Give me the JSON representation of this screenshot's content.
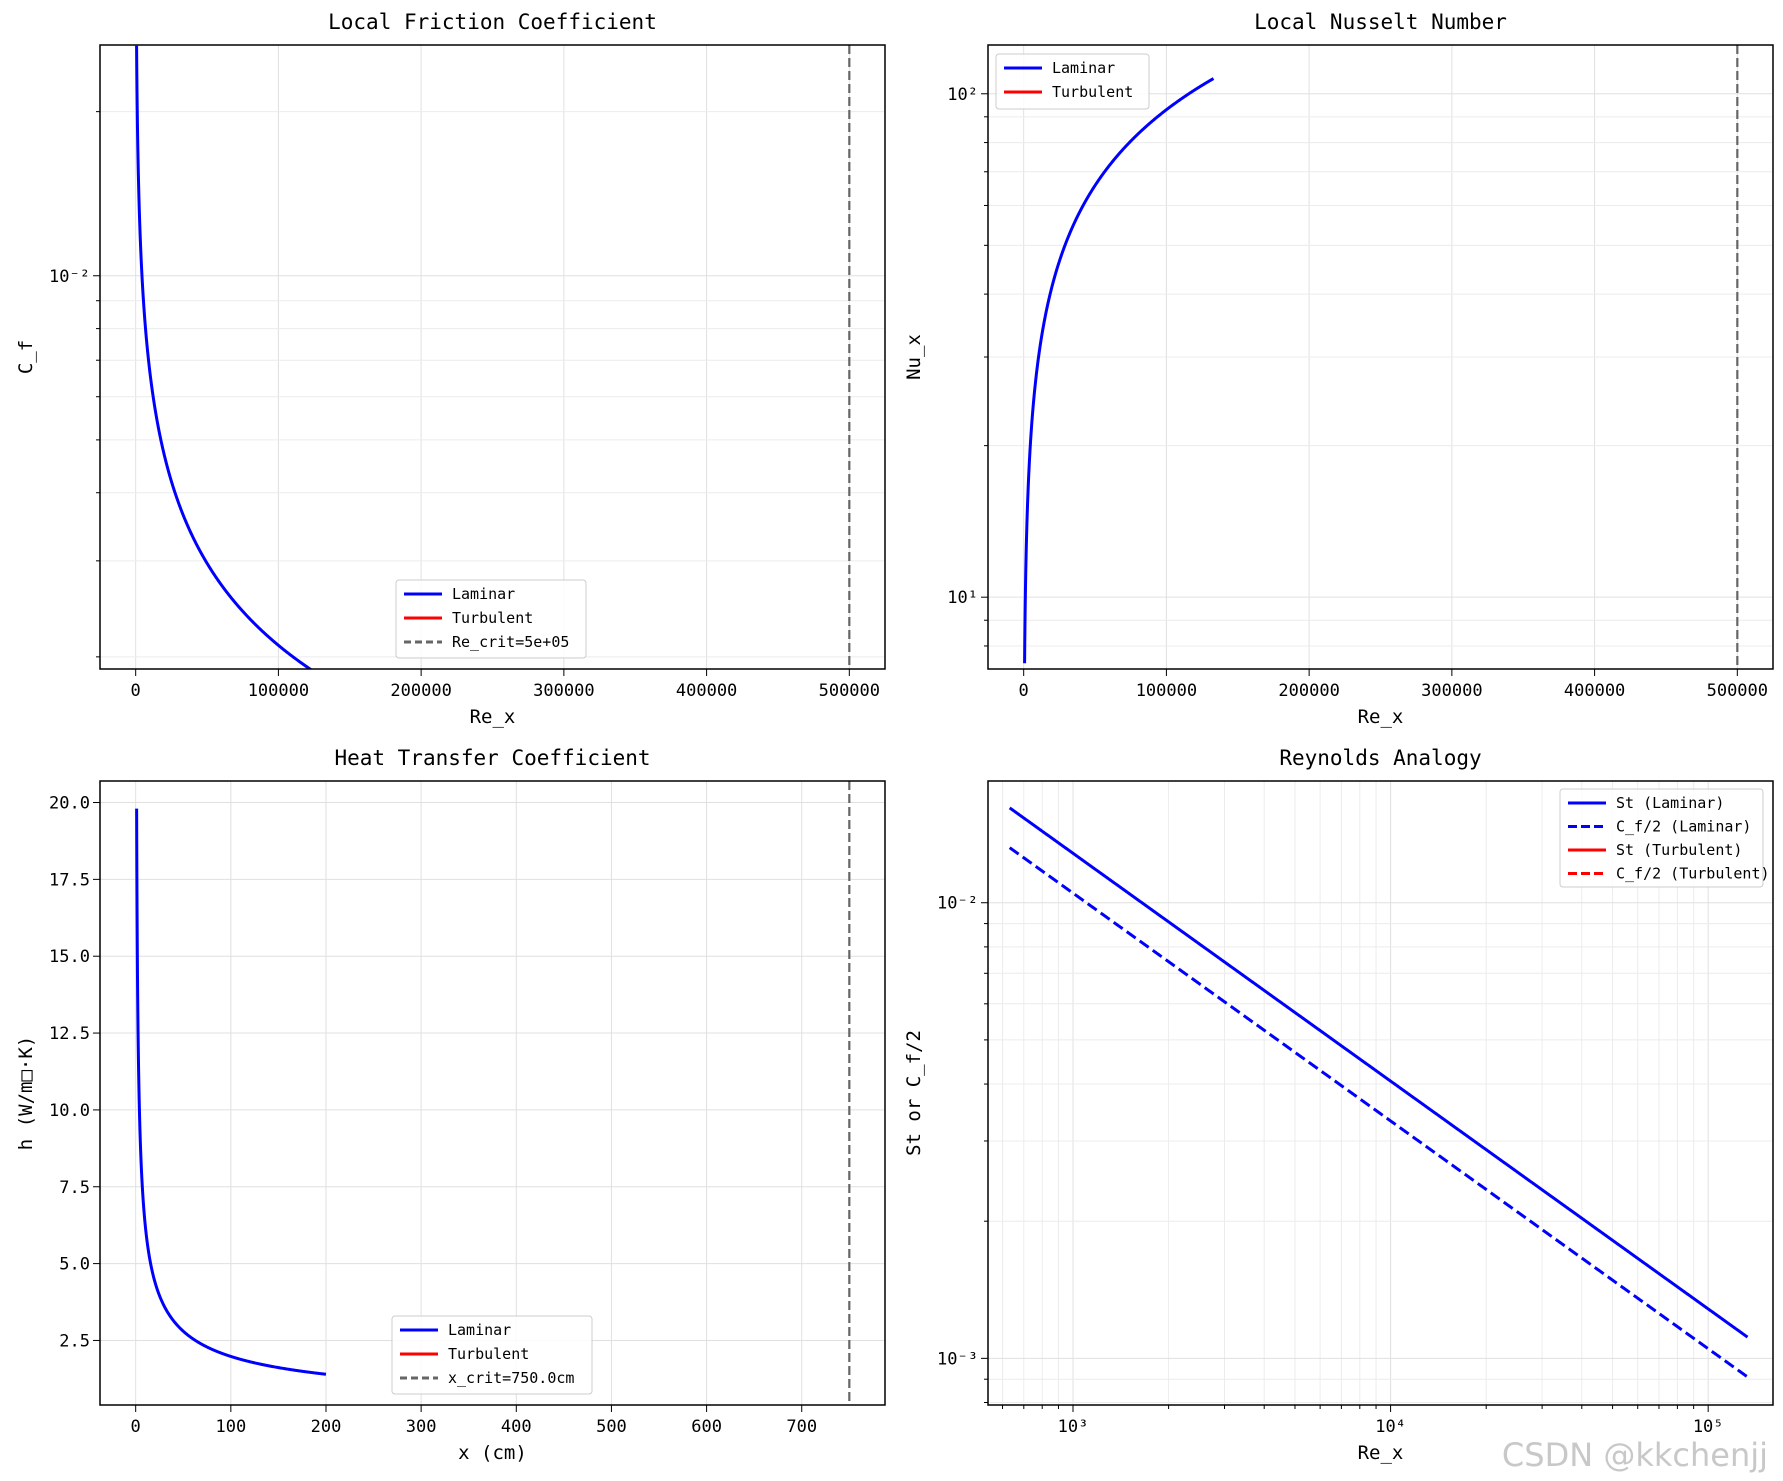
{
  "chart_data": [
    {
      "type": "line",
      "title": "Local Friction Coefficient",
      "xlabel": "Re_x",
      "ylabel": "C_f",
      "xscale": "linear",
      "yscale": "log",
      "xlim": [
        -25000,
        525000
      ],
      "ylim": [
        0.0019,
        0.0265
      ],
      "xticks": [
        0,
        100000,
        200000,
        300000,
        400000,
        500000
      ],
      "xtick_labels": [
        "0",
        "100000",
        "200000",
        "300000",
        "400000",
        "500000"
      ],
      "ytick_labels": [
        {
          "value": 0.01,
          "label": "10⁻²"
        }
      ],
      "grid": true,
      "legend": {
        "position": "lower-center",
        "entries": [
          "Laminar",
          "Turbulent",
          "Re_crit=5e+05"
        ]
      },
      "series": [
        {
          "name": "Laminar",
          "color": "#0000ff",
          "style": "solid",
          "formula": "0.664/sqrt(x)",
          "x_range": [
            632,
            133000
          ]
        },
        {
          "name": "Turbulent",
          "color": "#ff0000",
          "style": "solid",
          "points": []
        }
      ],
      "vline": {
        "name": "Re_crit=5e+05",
        "x": 500000,
        "color": "#666666",
        "style": "dashed"
      }
    },
    {
      "type": "line",
      "title": "Local Nusselt Number",
      "xlabel": "Re_x",
      "ylabel": "Nu_x",
      "xscale": "linear",
      "yscale": "log",
      "xlim": [
        -25000,
        525000
      ],
      "ylim": [
        7.2,
        125
      ],
      "xticks": [
        0,
        100000,
        200000,
        300000,
        400000,
        500000
      ],
      "xtick_labels": [
        "0",
        "100000",
        "200000",
        "300000",
        "400000",
        "500000"
      ],
      "ytick_labels": [
        {
          "value": 10,
          "label": "10¹"
        },
        {
          "value": 100,
          "label": "10²"
        }
      ],
      "grid": true,
      "legend": {
        "position": "upper-left",
        "entries": [
          "Laminar",
          "Turbulent"
        ]
      },
      "series": [
        {
          "name": "Laminar",
          "color": "#0000ff",
          "style": "solid",
          "formula": "0.294*sqrt(x)",
          "x_range": [
            632,
            133000
          ]
        },
        {
          "name": "Turbulent",
          "color": "#ff0000",
          "style": "solid",
          "points": []
        }
      ],
      "vline": {
        "x": 500000,
        "color": "#666666",
        "style": "dashed"
      }
    },
    {
      "type": "line",
      "title": "Heat Transfer Coefficient",
      "xlabel": "x (cm)",
      "ylabel": "h (W/m□·K)",
      "xscale": "linear",
      "yscale": "linear",
      "xlim": [
        -37.5,
        787.5
      ],
      "ylim": [
        0.4,
        20.7
      ],
      "xticks": [
        0,
        100,
        200,
        300,
        400,
        500,
        600,
        700
      ],
      "xtick_labels": [
        "0",
        "100",
        "200",
        "300",
        "400",
        "500",
        "600",
        "700"
      ],
      "yticks": [
        2.5,
        5.0,
        7.5,
        10.0,
        12.5,
        15.0,
        17.5,
        20.0
      ],
      "ytick_labels": [
        "2.5",
        "5.0",
        "7.5",
        "10.0",
        "12.5",
        "15.0",
        "17.5",
        "20.0"
      ],
      "grid": true,
      "legend": {
        "position": "lower-center",
        "entries": [
          "Laminar",
          "Turbulent",
          "x_crit=750.0cm"
        ]
      },
      "series": [
        {
          "name": "Laminar",
          "color": "#0000ff",
          "style": "solid",
          "formula": "19.8/sqrt(x)",
          "x_range": [
            1,
            200
          ]
        },
        {
          "name": "Turbulent",
          "color": "#ff0000",
          "style": "solid",
          "points": []
        }
      ],
      "vline": {
        "name": "x_crit=750.0cm",
        "x": 750,
        "color": "#666666",
        "style": "dashed"
      }
    },
    {
      "type": "line",
      "title": "Reynolds Analogy",
      "xlabel": "Re_x",
      "ylabel": "St or C_f/2",
      "xscale": "log",
      "yscale": "log",
      "xlim": [
        540,
        160000
      ],
      "ylim": [
        0.00079,
        0.0185
      ],
      "xtick_labels": [
        {
          "value": 1000,
          "label": "10³"
        },
        {
          "value": 10000,
          "label": "10⁴"
        },
        {
          "value": 100000,
          "label": "10⁵"
        }
      ],
      "ytick_labels": [
        {
          "value": 0.001,
          "label": "10⁻³"
        },
        {
          "value": 0.01,
          "label": "10⁻²"
        }
      ],
      "grid": true,
      "legend": {
        "position": "upper-right",
        "entries": [
          "St (Laminar)",
          "C_f/2 (Laminar)",
          "St (Turbulent)",
          "C_f/2 (Turbulent)"
        ]
      },
      "series": [
        {
          "name": "St (Laminar)",
          "color": "#0000ff",
          "style": "solid",
          "formula": "0.406/sqrt(x)",
          "x_range": [
            632,
            133000
          ]
        },
        {
          "name": "C_f/2 (Laminar)",
          "color": "#0000ff",
          "style": "dashed",
          "formula": "0.332/sqrt(x)",
          "x_range": [
            632,
            133000
          ]
        },
        {
          "name": "St (Turbulent)",
          "color": "#ff0000",
          "style": "solid",
          "points": []
        },
        {
          "name": "C_f/2 (Turbulent)",
          "color": "#ff0000",
          "style": "dashed",
          "points": []
        }
      ]
    }
  ],
  "watermark": "CSDN @kkchenjj"
}
